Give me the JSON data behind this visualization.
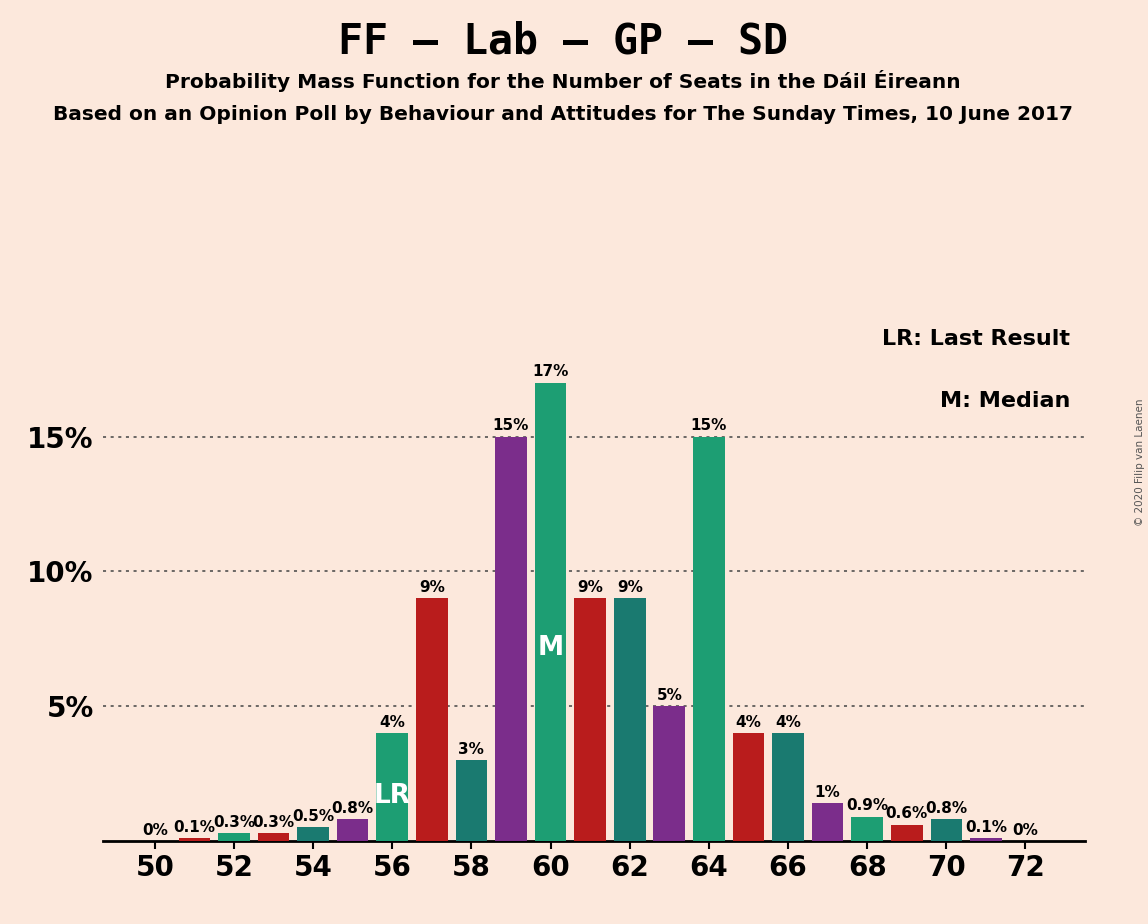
{
  "title": "FF – Lab – GP – SD",
  "subtitle1": "Probability Mass Function for the Number of Seats in the Dáil Éireann",
  "subtitle2": "Based on an Opinion Poll by Behaviour and Attitudes for The Sunday Times, 10 June 2017",
  "copyright": "© 2020 Filip van Laenen",
  "legend_lr": "LR: Last Result",
  "legend_m": "M: Median",
  "bg_color": "#fce8dc",
  "x_seats": [
    50,
    51,
    52,
    53,
    54,
    55,
    56,
    57,
    58,
    59,
    60,
    61,
    62,
    63,
    64,
    65,
    66,
    67,
    68,
    69,
    70,
    71,
    72
  ],
  "probabilities": [
    0.0,
    0.001,
    0.003,
    0.003,
    0.005,
    0.008,
    0.04,
    0.09,
    0.03,
    0.15,
    0.17,
    0.09,
    0.09,
    0.05,
    0.15,
    0.04,
    0.04,
    0.014,
    0.009,
    0.006,
    0.008,
    0.001,
    0.0
  ],
  "bar_colors": [
    "#1d9e73",
    "#b91c1c",
    "#1d9e73",
    "#b91c1c",
    "#1a7a70",
    "#7b2d8b",
    "#1d9e73",
    "#b91c1c",
    "#1a7a70",
    "#7b2d8b",
    "#1d9e73",
    "#b91c1c",
    "#1a7a70",
    "#7b2d8b",
    "#1d9e73",
    "#b91c1c",
    "#1a7a70",
    "#7b2d8b",
    "#1d9e73",
    "#b91c1c",
    "#1a7a70",
    "#7b2d8b",
    "#1d9e73"
  ],
  "lr_seat": 56,
  "median_seat": 60,
  "ylim_max": 0.192,
  "xtick_positions": [
    50,
    52,
    54,
    56,
    58,
    60,
    62,
    64,
    66,
    68,
    70,
    72
  ],
  "ytick_positions": [
    0.05,
    0.1,
    0.15
  ],
  "ytick_labels": [
    "5%",
    "10%",
    "15%"
  ]
}
